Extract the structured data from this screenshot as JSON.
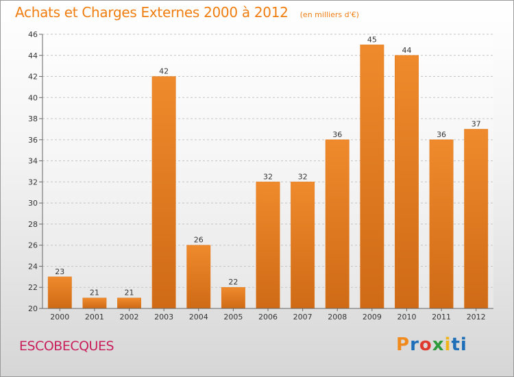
{
  "chart_data": {
    "type": "bar",
    "title": "Achats et Charges Externes 2000 à 2012",
    "subtitle": "(en milliers d'€)",
    "categories": [
      "2000",
      "2001",
      "2002",
      "2003",
      "2004",
      "2005",
      "2006",
      "2007",
      "2008",
      "2009",
      "2010",
      "2011",
      "2012"
    ],
    "values": [
      23,
      21,
      21,
      42,
      26,
      22,
      32,
      32,
      36,
      45,
      44,
      36,
      37
    ],
    "ylim": [
      20,
      46
    ],
    "yticks": [
      20,
      22,
      24,
      26,
      28,
      30,
      32,
      34,
      36,
      38,
      40,
      42,
      44,
      46
    ],
    "grid": true,
    "bar_color": "#ef8a2c",
    "bar_color_dark": "#cf6a16"
  },
  "footer": {
    "commune": "ESCOBECQUES",
    "logo_letters": [
      "P",
      "r",
      "o",
      "x",
      "i",
      "ti"
    ]
  }
}
